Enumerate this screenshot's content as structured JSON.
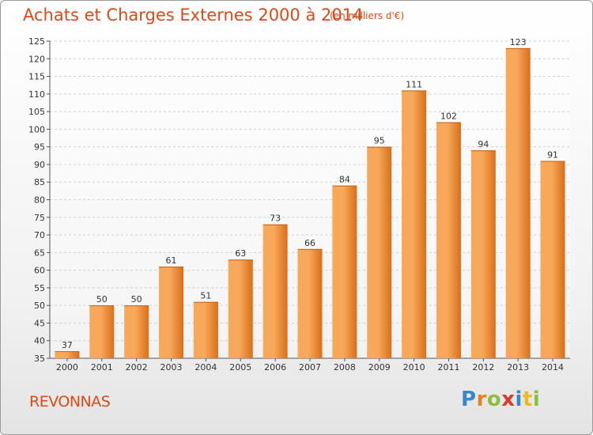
{
  "header": {
    "title": "Achats et Charges Externes 2000 à 2014",
    "subtitle": "(en milliers d'€)"
  },
  "footer": {
    "commune": "REVONNAS",
    "logo": {
      "letters": [
        "P",
        "r",
        "o",
        "x",
        "i",
        "t",
        "i"
      ],
      "colors": [
        "#3a87c7",
        "#e8821e",
        "#8cbf3f",
        "#d93a2b",
        "#3a87c7",
        "#f2b81f",
        "#8cbf3f"
      ]
    }
  },
  "chart_data": {
    "type": "bar",
    "categories": [
      "2000",
      "2001",
      "2002",
      "2003",
      "2004",
      "2005",
      "2006",
      "2007",
      "2008",
      "2009",
      "2010",
      "2011",
      "2012",
      "2013",
      "2014"
    ],
    "values": [
      37,
      50,
      50,
      61,
      51,
      63,
      73,
      66,
      84,
      95,
      111,
      102,
      94,
      123,
      91
    ],
    "ylim": [
      35,
      125
    ],
    "yticks": [
      35,
      40,
      45,
      50,
      55,
      60,
      65,
      70,
      75,
      80,
      85,
      90,
      95,
      100,
      105,
      110,
      115,
      120,
      125
    ],
    "grid": true,
    "bar_color_light": "#f7a85a",
    "bar_color_dark": "#d96f1a"
  }
}
